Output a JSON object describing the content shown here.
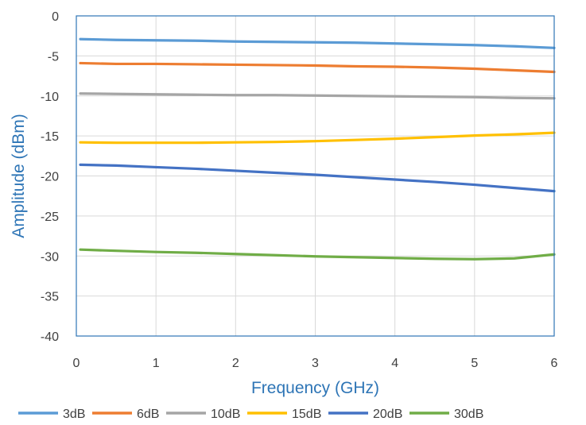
{
  "chart_data": {
    "type": "line",
    "title": "",
    "xlabel": "Frequency (GHz)",
    "ylabel": "Amplitude (dBm)",
    "xlim": [
      0,
      6
    ],
    "ylim": [
      -40,
      0
    ],
    "xticks": [
      "0",
      "1",
      "2",
      "3",
      "4",
      "5",
      "6"
    ],
    "yticks": [
      "0",
      "-5",
      "-10",
      "-15",
      "-20",
      "-25",
      "-30",
      "-35",
      "-40"
    ],
    "grid": true,
    "legend_position": "bottom",
    "x": [
      0.05,
      0.5,
      1,
      1.5,
      2,
      2.5,
      3,
      3.5,
      4,
      4.5,
      5,
      5.5,
      6
    ],
    "series": [
      {
        "name": "3dB",
        "color": "#5b9bd5",
        "values": [
          -2.9,
          -3.0,
          -3.05,
          -3.1,
          -3.2,
          -3.25,
          -3.3,
          -3.35,
          -3.45,
          -3.55,
          -3.65,
          -3.8,
          -4.0
        ]
      },
      {
        "name": "6dB",
        "color": "#ed7d31",
        "values": [
          -5.9,
          -6.0,
          -6.0,
          -6.05,
          -6.1,
          -6.15,
          -6.2,
          -6.3,
          -6.35,
          -6.45,
          -6.6,
          -6.8,
          -7.0
        ]
      },
      {
        "name": "10dB",
        "color": "#a5a5a5",
        "values": [
          -9.7,
          -9.75,
          -9.8,
          -9.85,
          -9.9,
          -9.9,
          -9.95,
          -10.0,
          -10.05,
          -10.1,
          -10.15,
          -10.25,
          -10.3
        ]
      },
      {
        "name": "15dB",
        "color": "#ffc000",
        "values": [
          -15.8,
          -15.85,
          -15.85,
          -15.85,
          -15.8,
          -15.75,
          -15.65,
          -15.5,
          -15.35,
          -15.15,
          -14.95,
          -14.8,
          -14.6
        ]
      },
      {
        "name": "20dB",
        "color": "#4472c4",
        "values": [
          -18.6,
          -18.7,
          -18.9,
          -19.1,
          -19.35,
          -19.6,
          -19.85,
          -20.15,
          -20.45,
          -20.75,
          -21.1,
          -21.5,
          -21.9
        ]
      },
      {
        "name": "30dB",
        "color": "#70ad47",
        "values": [
          -29.2,
          -29.35,
          -29.5,
          -29.6,
          -29.75,
          -29.9,
          -30.05,
          -30.15,
          -30.25,
          -30.35,
          -30.4,
          -30.3,
          -29.8
        ]
      }
    ]
  }
}
